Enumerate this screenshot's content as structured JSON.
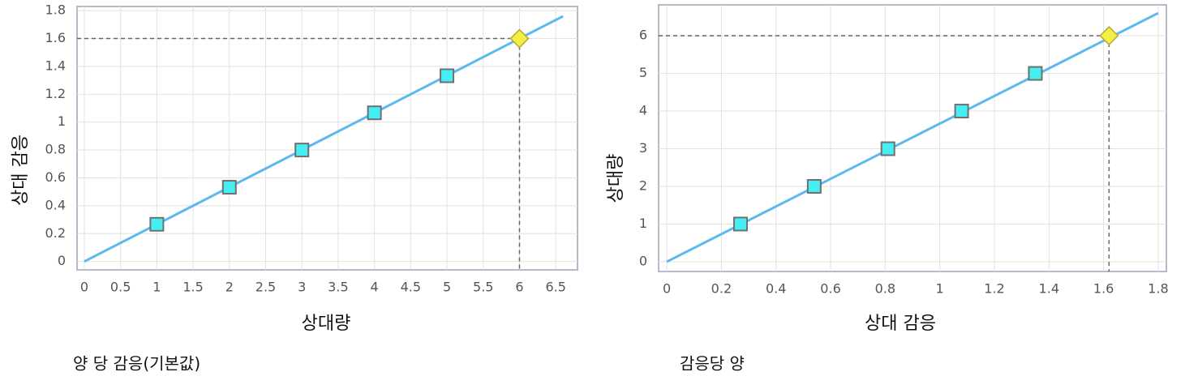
{
  "chart_data": [
    {
      "type": "line",
      "x_label": "상대량",
      "y_label": "상대 감응",
      "caption": "양 당 감응(기본값)",
      "xlim": [
        -0.1,
        6.8
      ],
      "ylim": [
        -0.06,
        1.83
      ],
      "xticks": [
        0,
        0.5,
        1,
        1.5,
        2,
        2.5,
        3,
        3.5,
        4,
        4.5,
        5,
        5.5,
        6,
        6.5
      ],
      "yticks": [
        0,
        0.2,
        0.4,
        0.6,
        0.8,
        1,
        1.2,
        1.4,
        1.6,
        1.8
      ],
      "grid": true,
      "line": {
        "x": [
          0,
          6.6
        ],
        "values": [
          0,
          1.76
        ],
        "color": "#5cb9ee"
      },
      "points": {
        "x": [
          1,
          2,
          3,
          4,
          5
        ],
        "values": [
          0.267,
          0.533,
          0.8,
          1.067,
          1.333
        ],
        "color": "#44eef2"
      },
      "highlight": {
        "x": 6,
        "y": 1.6,
        "color": "#f2f044"
      }
    },
    {
      "type": "line",
      "x_label": "상대 감응",
      "y_label": "상대량",
      "caption": "감응당 양",
      "xlim": [
        -0.03,
        1.83
      ],
      "ylim": [
        -0.26,
        6.82
      ],
      "xticks": [
        0,
        0.2,
        0.4,
        0.6,
        0.8,
        1,
        1.2,
        1.4,
        1.6,
        1.8
      ],
      "yticks": [
        0,
        1,
        2,
        3,
        4,
        5,
        6
      ],
      "grid": true,
      "line": {
        "x": [
          0,
          1.8
        ],
        "values": [
          0,
          6.6
        ],
        "color": "#5cb9ee"
      },
      "points": {
        "x": [
          0.27,
          0.54,
          0.81,
          1.08,
          1.35
        ],
        "values": [
          1,
          2,
          3,
          4,
          5
        ],
        "color": "#44eef2"
      },
      "highlight": {
        "x": 1.62,
        "y": 6,
        "color": "#f2f044"
      }
    }
  ]
}
